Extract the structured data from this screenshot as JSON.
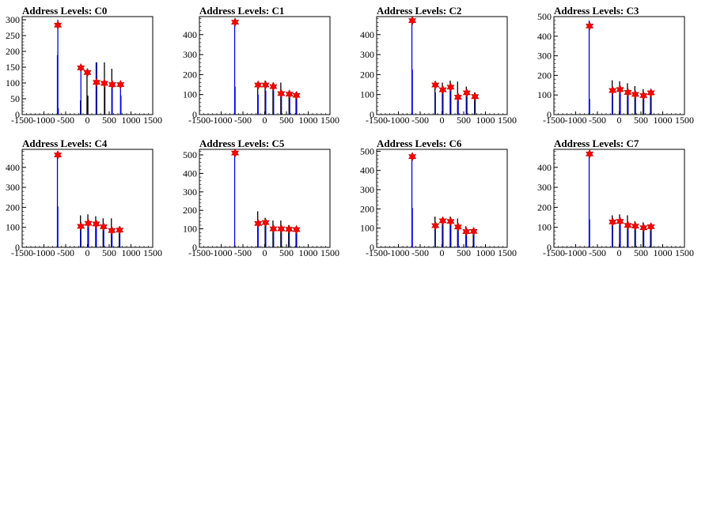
{
  "chart_data": [
    {
      "type": "histogram",
      "title": "Address Levels: C0",
      "xlim": [
        -1500,
        1500
      ],
      "ylim": [
        0,
        310
      ],
      "xticks": [
        "-1500",
        "-1000",
        "-500",
        "0",
        "500",
        "1000",
        "1500"
      ],
      "yticks": [
        "0",
        "50",
        "100",
        "150",
        "200",
        "250",
        "300"
      ],
      "peaks": [
        {
          "x": -680,
          "y": 283
        },
        {
          "x": -150,
          "y": 148
        },
        {
          "x": 0,
          "y": 133
        },
        {
          "x": 210,
          "y": 102
        },
        {
          "x": 390,
          "y": 99
        },
        {
          "x": 570,
          "y": 95
        },
        {
          "x": 760,
          "y": 95
        }
      ],
      "bars": [
        {
          "x": -690,
          "y": 188,
          "c": "blue"
        },
        {
          "x": -680,
          "y": 300,
          "c": "blue"
        },
        {
          "x": -670,
          "y": 20,
          "c": "blue"
        },
        {
          "x": -160,
          "y": 45,
          "c": "black"
        },
        {
          "x": -150,
          "y": 155,
          "c": "blue"
        },
        {
          "x": -10,
          "y": 140,
          "c": "black"
        },
        {
          "x": 10,
          "y": 60,
          "c": "black"
        },
        {
          "x": 200,
          "y": 165,
          "c": "black"
        },
        {
          "x": 215,
          "y": 165,
          "c": "blue"
        },
        {
          "x": 390,
          "y": 165,
          "c": "black"
        },
        {
          "x": 400,
          "y": 100,
          "c": "black"
        },
        {
          "x": 560,
          "y": 145,
          "c": "black"
        },
        {
          "x": 570,
          "y": 95,
          "c": "blue"
        },
        {
          "x": 760,
          "y": 100,
          "c": "blue"
        },
        {
          "x": 770,
          "y": 60,
          "c": "blue"
        }
      ]
    },
    {
      "type": "histogram",
      "title": "Address Levels: C1",
      "xlim": [
        -1500,
        1500
      ],
      "ylim": [
        0,
        490
      ],
      "xticks": [
        "-1500",
        "-1000",
        "-500",
        "0",
        "500",
        "1000",
        "1500"
      ],
      "yticks": [
        "0",
        "100",
        "200",
        "300",
        "400"
      ],
      "peaks": [
        {
          "x": -680,
          "y": 462
        },
        {
          "x": -150,
          "y": 148
        },
        {
          "x": 20,
          "y": 148
        },
        {
          "x": 200,
          "y": 140
        },
        {
          "x": 380,
          "y": 105
        },
        {
          "x": 570,
          "y": 102
        },
        {
          "x": 730,
          "y": 96
        }
      ],
      "bars": [
        {
          "x": -690,
          "y": 480,
          "c": "blue"
        },
        {
          "x": -680,
          "y": 140,
          "c": "blue"
        },
        {
          "x": -160,
          "y": 160,
          "c": "black"
        },
        {
          "x": -150,
          "y": 100,
          "c": "blue"
        },
        {
          "x": 10,
          "y": 170,
          "c": "black"
        },
        {
          "x": 25,
          "y": 120,
          "c": "blue"
        },
        {
          "x": 190,
          "y": 160,
          "c": "black"
        },
        {
          "x": 205,
          "y": 120,
          "c": "blue"
        },
        {
          "x": 370,
          "y": 160,
          "c": "black"
        },
        {
          "x": 385,
          "y": 100,
          "c": "blue"
        },
        {
          "x": 560,
          "y": 120,
          "c": "black"
        },
        {
          "x": 575,
          "y": 90,
          "c": "blue"
        },
        {
          "x": 720,
          "y": 110,
          "c": "black"
        },
        {
          "x": 735,
          "y": 95,
          "c": "blue"
        }
      ]
    },
    {
      "type": "histogram",
      "title": "Address Levels: C2",
      "xlim": [
        -1500,
        1500
      ],
      "ylim": [
        0,
        490
      ],
      "xticks": [
        "-1500",
        "-1000",
        "-500",
        "0",
        "500",
        "1000",
        "1500"
      ],
      "yticks": [
        "0",
        "100",
        "200",
        "300",
        "400"
      ],
      "peaks": [
        {
          "x": -680,
          "y": 470
        },
        {
          "x": -150,
          "y": 148
        },
        {
          "x": 20,
          "y": 124
        },
        {
          "x": 200,
          "y": 137
        },
        {
          "x": 370,
          "y": 87
        },
        {
          "x": 570,
          "y": 109
        },
        {
          "x": 760,
          "y": 90
        }
      ],
      "bars": [
        {
          "x": -690,
          "y": 480,
          "c": "blue"
        },
        {
          "x": -680,
          "y": 225,
          "c": "blue"
        },
        {
          "x": -160,
          "y": 165,
          "c": "black"
        },
        {
          "x": -150,
          "y": 110,
          "c": "blue"
        },
        {
          "x": 10,
          "y": 160,
          "c": "black"
        },
        {
          "x": 25,
          "y": 120,
          "c": "blue"
        },
        {
          "x": 190,
          "y": 170,
          "c": "black"
        },
        {
          "x": 205,
          "y": 130,
          "c": "blue"
        },
        {
          "x": 360,
          "y": 165,
          "c": "black"
        },
        {
          "x": 375,
          "y": 90,
          "c": "blue"
        },
        {
          "x": 560,
          "y": 140,
          "c": "black"
        },
        {
          "x": 575,
          "y": 100,
          "c": "blue"
        },
        {
          "x": 750,
          "y": 110,
          "c": "black"
        },
        {
          "x": 765,
          "y": 90,
          "c": "blue"
        }
      ]
    },
    {
      "type": "histogram",
      "title": "Address Levels: C3",
      "xlim": [
        -1500,
        1500
      ],
      "ylim": [
        0,
        500
      ],
      "xticks": [
        "-1500",
        "-1000",
        "-500",
        "0",
        "500",
        "1000",
        "1500"
      ],
      "yticks": [
        "0",
        "100",
        "200",
        "300",
        "400",
        "500"
      ],
      "peaks": [
        {
          "x": -680,
          "y": 452
        },
        {
          "x": -150,
          "y": 123
        },
        {
          "x": 20,
          "y": 128
        },
        {
          "x": 200,
          "y": 113
        },
        {
          "x": 370,
          "y": 103
        },
        {
          "x": 560,
          "y": 97
        },
        {
          "x": 730,
          "y": 111
        }
      ],
      "bars": [
        {
          "x": -690,
          "y": 480,
          "c": "blue"
        },
        {
          "x": -680,
          "y": 80,
          "c": "blue"
        },
        {
          "x": -160,
          "y": 175,
          "c": "black"
        },
        {
          "x": -150,
          "y": 120,
          "c": "blue"
        },
        {
          "x": 10,
          "y": 170,
          "c": "black"
        },
        {
          "x": 25,
          "y": 130,
          "c": "blue"
        },
        {
          "x": 190,
          "y": 160,
          "c": "black"
        },
        {
          "x": 205,
          "y": 110,
          "c": "blue"
        },
        {
          "x": 360,
          "y": 145,
          "c": "black"
        },
        {
          "x": 375,
          "y": 100,
          "c": "blue"
        },
        {
          "x": 550,
          "y": 130,
          "c": "black"
        },
        {
          "x": 565,
          "y": 95,
          "c": "blue"
        },
        {
          "x": 720,
          "y": 120,
          "c": "black"
        },
        {
          "x": 735,
          "y": 110,
          "c": "blue"
        }
      ]
    },
    {
      "type": "histogram",
      "title": "Address Levels: C4",
      "xlim": [
        -1500,
        1500
      ],
      "ylim": [
        0,
        490
      ],
      "xticks": [
        "-1500",
        "-1000",
        "-500",
        "0",
        "500",
        "1000",
        "1500"
      ],
      "yticks": [
        "0",
        "100",
        "200",
        "300",
        "400"
      ],
      "peaks": [
        {
          "x": -680,
          "y": 462
        },
        {
          "x": -150,
          "y": 105
        },
        {
          "x": 20,
          "y": 120
        },
        {
          "x": 200,
          "y": 117
        },
        {
          "x": 370,
          "y": 103
        },
        {
          "x": 560,
          "y": 84
        },
        {
          "x": 740,
          "y": 86
        }
      ],
      "bars": [
        {
          "x": -690,
          "y": 480,
          "c": "blue"
        },
        {
          "x": -680,
          "y": 205,
          "c": "blue"
        },
        {
          "x": -160,
          "y": 160,
          "c": "black"
        },
        {
          "x": -150,
          "y": 100,
          "c": "blue"
        },
        {
          "x": 10,
          "y": 165,
          "c": "black"
        },
        {
          "x": 25,
          "y": 115,
          "c": "blue"
        },
        {
          "x": 190,
          "y": 155,
          "c": "black"
        },
        {
          "x": 205,
          "y": 110,
          "c": "blue"
        },
        {
          "x": 360,
          "y": 145,
          "c": "black"
        },
        {
          "x": 375,
          "y": 100,
          "c": "blue"
        },
        {
          "x": 550,
          "y": 145,
          "c": "black"
        },
        {
          "x": 565,
          "y": 80,
          "c": "blue"
        },
        {
          "x": 730,
          "y": 90,
          "c": "black"
        },
        {
          "x": 745,
          "y": 85,
          "c": "blue"
        }
      ]
    },
    {
      "type": "histogram",
      "title": "Address Levels: C5",
      "xlim": [
        -1500,
        1500
      ],
      "ylim": [
        0,
        530
      ],
      "xticks": [
        "-1500",
        "-1000",
        "-500",
        "0",
        "500",
        "1000",
        "1500"
      ],
      "yticks": [
        "0",
        "100",
        "200",
        "300",
        "400",
        "500"
      ],
      "peaks": [
        {
          "x": -680,
          "y": 510
        },
        {
          "x": -150,
          "y": 129
        },
        {
          "x": 20,
          "y": 134
        },
        {
          "x": 200,
          "y": 100
        },
        {
          "x": 380,
          "y": 100
        },
        {
          "x": 560,
          "y": 98
        },
        {
          "x": 730,
          "y": 96
        }
      ],
      "bars": [
        {
          "x": -690,
          "y": 525,
          "c": "blue"
        },
        {
          "x": -680,
          "y": 10,
          "c": "blue"
        },
        {
          "x": -160,
          "y": 195,
          "c": "black"
        },
        {
          "x": -150,
          "y": 130,
          "c": "blue"
        },
        {
          "x": 10,
          "y": 160,
          "c": "black"
        },
        {
          "x": 25,
          "y": 130,
          "c": "blue"
        },
        {
          "x": 190,
          "y": 145,
          "c": "black"
        },
        {
          "x": 205,
          "y": 100,
          "c": "blue"
        },
        {
          "x": 370,
          "y": 145,
          "c": "black"
        },
        {
          "x": 385,
          "y": 100,
          "c": "blue"
        },
        {
          "x": 550,
          "y": 120,
          "c": "black"
        },
        {
          "x": 565,
          "y": 95,
          "c": "blue"
        },
        {
          "x": 720,
          "y": 110,
          "c": "black"
        },
        {
          "x": 735,
          "y": 95,
          "c": "blue"
        }
      ]
    },
    {
      "type": "histogram",
      "title": "Address Levels: C6",
      "xlim": [
        -1500,
        1500
      ],
      "ylim": [
        0,
        510
      ],
      "xticks": [
        "-1500",
        "-1000",
        "-500",
        "0",
        "500",
        "1000",
        "1500"
      ],
      "yticks": [
        "0",
        "100",
        "200",
        "300",
        "400",
        "500"
      ],
      "peaks": [
        {
          "x": -680,
          "y": 472
        },
        {
          "x": -150,
          "y": 113
        },
        {
          "x": 20,
          "y": 138
        },
        {
          "x": 200,
          "y": 135
        },
        {
          "x": 370,
          "y": 106
        },
        {
          "x": 560,
          "y": 82
        },
        {
          "x": 730,
          "y": 83
        }
      ],
      "bars": [
        {
          "x": -690,
          "y": 490,
          "c": "blue"
        },
        {
          "x": -680,
          "y": 205,
          "c": "blue"
        },
        {
          "x": -160,
          "y": 160,
          "c": "black"
        },
        {
          "x": -150,
          "y": 110,
          "c": "blue"
        },
        {
          "x": 10,
          "y": 155,
          "c": "black"
        },
        {
          "x": 25,
          "y": 135,
          "c": "blue"
        },
        {
          "x": 190,
          "y": 160,
          "c": "black"
        },
        {
          "x": 205,
          "y": 130,
          "c": "blue"
        },
        {
          "x": 360,
          "y": 150,
          "c": "black"
        },
        {
          "x": 375,
          "y": 105,
          "c": "blue"
        },
        {
          "x": 550,
          "y": 110,
          "c": "black"
        },
        {
          "x": 565,
          "y": 80,
          "c": "blue"
        },
        {
          "x": 720,
          "y": 95,
          "c": "black"
        },
        {
          "x": 735,
          "y": 80,
          "c": "blue"
        }
      ]
    },
    {
      "type": "histogram",
      "title": "Address Levels: C7",
      "xlim": [
        -1500,
        1500
      ],
      "ylim": [
        0,
        490
      ],
      "xticks": [
        "-1500",
        "-1000",
        "-500",
        "0",
        "500",
        "1000",
        "1500"
      ],
      "yticks": [
        "0",
        "100",
        "200",
        "300",
        "400"
      ],
      "peaks": [
        {
          "x": -680,
          "y": 467
        },
        {
          "x": -150,
          "y": 127
        },
        {
          "x": 20,
          "y": 130
        },
        {
          "x": 200,
          "y": 110
        },
        {
          "x": 370,
          "y": 106
        },
        {
          "x": 560,
          "y": 98
        },
        {
          "x": 730,
          "y": 103
        }
      ],
      "bars": [
        {
          "x": -690,
          "y": 480,
          "c": "blue"
        },
        {
          "x": -680,
          "y": 140,
          "c": "blue"
        },
        {
          "x": -160,
          "y": 160,
          "c": "black"
        },
        {
          "x": -150,
          "y": 125,
          "c": "blue"
        },
        {
          "x": 10,
          "y": 165,
          "c": "black"
        },
        {
          "x": 25,
          "y": 130,
          "c": "blue"
        },
        {
          "x": 190,
          "y": 160,
          "c": "black"
        },
        {
          "x": 205,
          "y": 110,
          "c": "blue"
        },
        {
          "x": 360,
          "y": 130,
          "c": "black"
        },
        {
          "x": 375,
          "y": 105,
          "c": "blue"
        },
        {
          "x": 550,
          "y": 125,
          "c": "black"
        },
        {
          "x": 565,
          "y": 95,
          "c": "blue"
        },
        {
          "x": 720,
          "y": 110,
          "c": "black"
        },
        {
          "x": 735,
          "y": 100,
          "c": "blue"
        }
      ]
    }
  ],
  "colors": {
    "bar_primary": "#0000ee",
    "bar_secondary": "#000000",
    "marker_fill": "#ff0000",
    "marker_stroke": "#b00000",
    "frame": "#000000"
  }
}
